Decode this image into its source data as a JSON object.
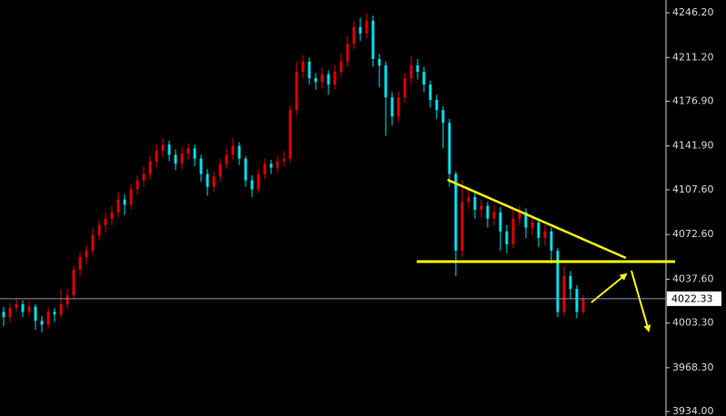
{
  "chart_data": {
    "type": "candlestick",
    "up_color": "#e00000",
    "down_color": "#00e0ee",
    "ylim": [
      3930.5,
      4256.2
    ],
    "yticks": [
      {
        "value": 4246.2,
        "label": "4246.20"
      },
      {
        "value": 4211.2,
        "label": "4211.20"
      },
      {
        "value": 4176.9,
        "label": "4176.90"
      },
      {
        "value": 4141.9,
        "label": "4141.90"
      },
      {
        "value": 4107.6,
        "label": "4107.60"
      },
      {
        "value": 4072.6,
        "label": "4072.60"
      },
      {
        "value": 4037.6,
        "label": "4037.60"
      },
      {
        "value": 4003.3,
        "label": "4003.30"
      },
      {
        "value": 3968.3,
        "label": "3968.30"
      },
      {
        "value": 3934.0,
        "label": "3934.00"
      }
    ],
    "last_price": 4022.33,
    "open": [
      4012,
      4008,
      4015,
      4018,
      4012,
      4016,
      4005,
      4002,
      4012,
      4010,
      4018,
      4025,
      4045,
      4055,
      4060,
      4072,
      4080,
      4085,
      4090,
      4100,
      4096,
      4108,
      4115,
      4120,
      4130,
      4138,
      4143,
      4135,
      4128,
      4136,
      4140,
      4132,
      4120,
      4110,
      4118,
      4128,
      4135,
      4142,
      4132,
      4115,
      4108,
      4120,
      4128,
      4125,
      4130,
      4132,
      4170,
      4200,
      4208,
      4195,
      4192,
      4198,
      4190,
      4200,
      4208,
      4222,
      4235,
      4230,
      4240,
      4210,
      4205,
      4180,
      4165,
      4180,
      4195,
      4205,
      4200,
      4190,
      4178,
      4170,
      4160,
      4120,
      4060,
      4098,
      4102,
      4092,
      4095,
      4085,
      4090,
      4075,
      4065,
      4085,
      4090,
      4078,
      4082,
      4070,
      4075,
      4060,
      4012,
      4040,
      4030,
      4012
    ],
    "high": [
      4016,
      4019,
      4022,
      4021,
      4020,
      4018,
      4009,
      4016,
      4015,
      4030,
      4030,
      4048,
      4059,
      4064,
      4078,
      4084,
      4090,
      4095,
      4106,
      4104,
      4112,
      4119,
      4126,
      4134,
      4143,
      4148,
      4146,
      4139,
      4141,
      4144,
      4143,
      4135,
      4124,
      4122,
      4132,
      4140,
      4148,
      4145,
      4134,
      4119,
      4124,
      4132,
      4131,
      4134,
      4138,
      4174,
      4208,
      4213,
      4211,
      4199,
      4203,
      4201,
      4205,
      4214,
      4228,
      4240,
      4242,
      4246,
      4244,
      4214,
      4208,
      4184,
      4185,
      4199,
      4212,
      4210,
      4204,
      4193,
      4182,
      4173,
      4163,
      4122,
      4115,
      4110,
      4106,
      4100,
      4098,
      4096,
      4094,
      4080,
      4092,
      4095,
      4093,
      4087,
      4085,
      4080,
      4078,
      4062,
      4048,
      4044,
      4033,
      4025
    ],
    "low": [
      4001,
      4004,
      4012,
      4008,
      4009,
      3998,
      3996,
      3999,
      4004,
      4007,
      4014,
      4022,
      4040,
      4050,
      4057,
      4068,
      4074,
      4080,
      4086,
      4088,
      4092,
      4104,
      4110,
      4116,
      4125,
      4133,
      4130,
      4123,
      4124,
      4131,
      4126,
      4114,
      4103,
      4106,
      4114,
      4124,
      4131,
      4127,
      4110,
      4102,
      4105,
      4116,
      4120,
      4121,
      4126,
      4129,
      4166,
      4195,
      4190,
      4186,
      4187,
      4182,
      4186,
      4196,
      4204,
      4218,
      4224,
      4226,
      4204,
      4188,
      4150,
      4158,
      4160,
      4176,
      4190,
      4194,
      4184,
      4172,
      4163,
      4140,
      4110,
      4040,
      4055,
      4093,
      4085,
      4086,
      4078,
      4080,
      4060,
      4058,
      4062,
      4080,
      4070,
      4072,
      4063,
      4064,
      4050,
      4008,
      4009,
      4022,
      4007,
      4010
    ],
    "close": [
      4008,
      4015,
      4018,
      4012,
      4016,
      4005,
      4002,
      4012,
      4010,
      4018,
      4025,
      4045,
      4055,
      4060,
      4072,
      4080,
      4085,
      4090,
      4100,
      4096,
      4108,
      4115,
      4120,
      4130,
      4138,
      4143,
      4135,
      4128,
      4136,
      4140,
      4132,
      4120,
      4110,
      4118,
      4128,
      4135,
      4142,
      4132,
      4115,
      4108,
      4120,
      4128,
      4125,
      4130,
      4132,
      4170,
      4200,
      4208,
      4195,
      4192,
      4198,
      4190,
      4200,
      4208,
      4222,
      4235,
      4230,
      4240,
      4210,
      4205,
      4180,
      4165,
      4180,
      4195,
      4205,
      4200,
      4190,
      4178,
      4170,
      4160,
      4120,
      4060,
      4098,
      4102,
      4092,
      4095,
      4085,
      4090,
      4075,
      4065,
      4085,
      4090,
      4078,
      4082,
      4070,
      4075,
      4060,
      4012,
      4040,
      4030,
      4012,
      4022
    ]
  }
}
